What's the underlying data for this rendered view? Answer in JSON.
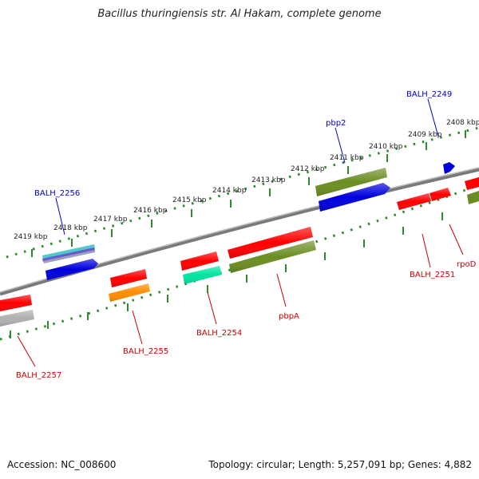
{
  "title": "Bacillus thuringiensis str. Al Hakam, complete genome",
  "footer": {
    "accession": "Accession: NC_008600",
    "summary": "Topology: circular; Length: 5,257,091 bp; Genes: 4,882"
  },
  "colors": {
    "backbone": "#808080",
    "ticks": "#2e8b2e",
    "tick_label": "#222222",
    "upper_label": "#0000cc",
    "lower_label": "#cc0000"
  },
  "ruler_labels": [
    "2408 kbp",
    "2409 kbp",
    "2410 kbp",
    "2411 kbp",
    "2412 kbp",
    "2413 kbp",
    "2414 kbp",
    "2415 kbp",
    "2416 kbp",
    "2417 kbp",
    "2418 kbp",
    "2419 kbp"
  ],
  "features": {
    "upper": [
      {
        "id": "pbp2",
        "label": "pbp2",
        "color": "#6b8e23"
      },
      {
        "id": "BALH_2256",
        "label": "BALH_2256",
        "color": "#4fc9c9"
      },
      {
        "id": "BALH_2249",
        "label": "BALH_2249",
        "color": "#0000dd"
      }
    ],
    "lower": [
      {
        "id": "BALH_2257",
        "label": "BALH_2257",
        "color": "#ff0000"
      },
      {
        "id": "BALH_2255",
        "label": "BALH_2255",
        "color": "#ff8c00"
      },
      {
        "id": "BALH_2254",
        "label": "BALH_2254",
        "color": "#00e5a0"
      },
      {
        "id": "pbpA",
        "label": "pbpA",
        "color": "#6b8e23"
      },
      {
        "id": "BALH_2251",
        "label": "BALH_2251",
        "color": "#ff0000"
      },
      {
        "id": "rpoD",
        "label": "rpoD",
        "color": "#ff0000"
      }
    ]
  }
}
